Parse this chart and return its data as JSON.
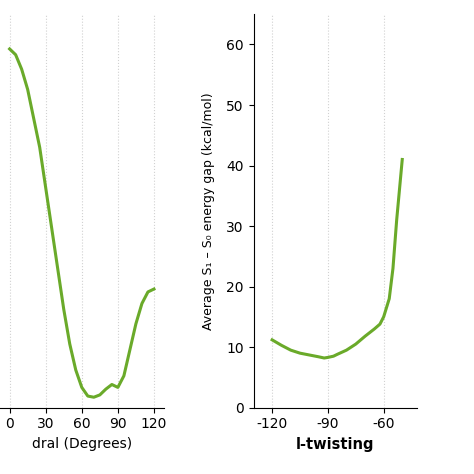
{
  "line_color": "#6aaa2a",
  "line_width": 2.2,
  "background_color": "#ffffff",
  "grid_color": "#cccccc",
  "grid_style": ":",
  "grid_alpha": 0.9,
  "plot1": {
    "xlabel": "dral (Degrees)",
    "xticks": [
      0,
      30,
      60,
      90,
      120
    ],
    "xlim": [
      -8,
      128
    ],
    "ylim": [
      0,
      68
    ],
    "x": [
      0,
      5,
      10,
      15,
      20,
      25,
      30,
      35,
      40,
      45,
      50,
      55,
      60,
      65,
      70,
      75,
      80,
      85,
      90,
      95,
      100,
      105,
      110,
      115,
      120
    ],
    "y": [
      62,
      61,
      58.5,
      55,
      50,
      45,
      38,
      31,
      24,
      17,
      11,
      6.5,
      3.5,
      2.0,
      1.8,
      2.2,
      3.2,
      4.0,
      3.5,
      5.5,
      10,
      14.5,
      18,
      20,
      20.5
    ]
  },
  "plot2": {
    "ylabel": "Average S₁ – S₀ energy gap (kcal/mol)",
    "xlabel": "l-twisting",
    "xticks": [
      -120,
      -90,
      -60
    ],
    "xlim": [
      -130,
      -42
    ],
    "ylim": [
      0,
      65
    ],
    "yticks": [
      0,
      10,
      20,
      30,
      40,
      50,
      60
    ],
    "x": [
      -120,
      -115,
      -110,
      -105,
      -100,
      -95,
      -92,
      -90,
      -87,
      -85,
      -80,
      -75,
      -70,
      -65,
      -62,
      -60,
      -57,
      -55,
      -53,
      -50
    ],
    "y": [
      11.2,
      10.3,
      9.5,
      9.0,
      8.7,
      8.4,
      8.2,
      8.3,
      8.5,
      8.8,
      9.5,
      10.5,
      11.8,
      13.0,
      13.8,
      15.0,
      18.0,
      23.0,
      31.0,
      41.0
    ]
  }
}
